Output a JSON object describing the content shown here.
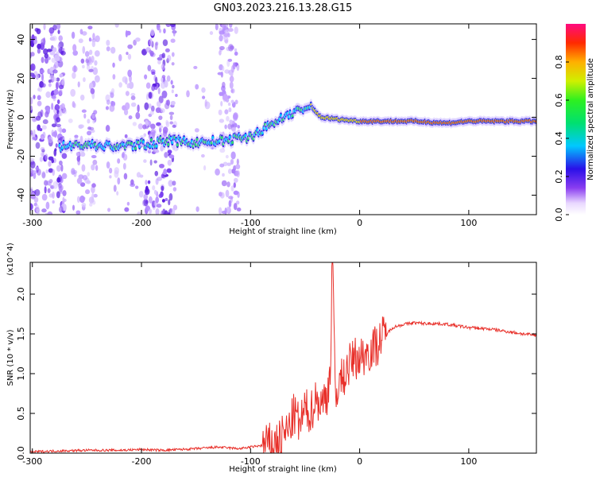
{
  "title": "GN03.2023.216.13.28.G15",
  "chart_data": [
    {
      "type": "heatmap",
      "xlabel": "Height of straight line (km)",
      "ylabel": "Frequency (Hz)",
      "xlim": [
        -302,
        162
      ],
      "ylim": [
        -50,
        48
      ],
      "xticks": [
        -300,
        -200,
        -100,
        0,
        100
      ],
      "yticks": [
        -40,
        -20,
        0,
        20,
        40
      ],
      "colorbar": {
        "label": "Normalized spectral amplitude",
        "range": [
          0,
          1
        ],
        "ticks": [
          "0.0",
          "0.2",
          "0.4",
          "0.6",
          "0.8"
        ]
      },
      "ridge": {
        "x": [
          -275,
          -250,
          -225,
          -200,
          -175,
          -150,
          -125,
          -100,
          -85,
          -70,
          -60,
          -45,
          -35,
          -20,
          0,
          50,
          80,
          100,
          162
        ],
        "frequency": [
          -15,
          -14,
          -15,
          -14,
          -12,
          -13,
          -12,
          -10,
          -5,
          0,
          3,
          5,
          0,
          -1,
          -2,
          -2,
          -3,
          -2,
          -2
        ]
      }
    },
    {
      "type": "line",
      "xlabel": "Height of straight line (km)",
      "ylabel": "SNR (10 * v/v)",
      "y_multiplier": "(x10^4)",
      "xlim": [
        -302,
        162
      ],
      "ylim": [
        0,
        2.4
      ],
      "xticks": [
        -300,
        -200,
        -100,
        0,
        100
      ],
      "yticks": [
        "0.0",
        "0.5",
        "1.0",
        "1.5",
        "2.0"
      ],
      "series": [
        {
          "color": "#e8302a",
          "x": [
            -302,
            -280,
            -250,
            -220,
            -200,
            -180,
            -150,
            -130,
            -110,
            -95,
            -85,
            -75,
            -65,
            -60,
            -55,
            -50,
            -45,
            -40,
            -35,
            -30,
            -27,
            -25,
            -22,
            -20,
            -15,
            -10,
            -5,
            0,
            5,
            10,
            15,
            20,
            25,
            30,
            40,
            50,
            60,
            70,
            80,
            90,
            100,
            110,
            120,
            130,
            140,
            150,
            162
          ],
          "y": [
            0.01,
            0.02,
            0.03,
            0.03,
            0.04,
            0.03,
            0.05,
            0.07,
            0.05,
            0.08,
            0.1,
            0.15,
            0.3,
            0.5,
            0.35,
            0.55,
            0.5,
            0.7,
            0.6,
            0.75,
            1.0,
            2.35,
            0.6,
            0.9,
            0.95,
            1.1,
            1.2,
            1.2,
            1.25,
            1.3,
            1.35,
            1.45,
            1.5,
            1.58,
            1.62,
            1.64,
            1.63,
            1.63,
            1.62,
            1.6,
            1.58,
            1.57,
            1.56,
            1.54,
            1.52,
            1.5,
            1.48
          ]
        }
      ]
    }
  ]
}
